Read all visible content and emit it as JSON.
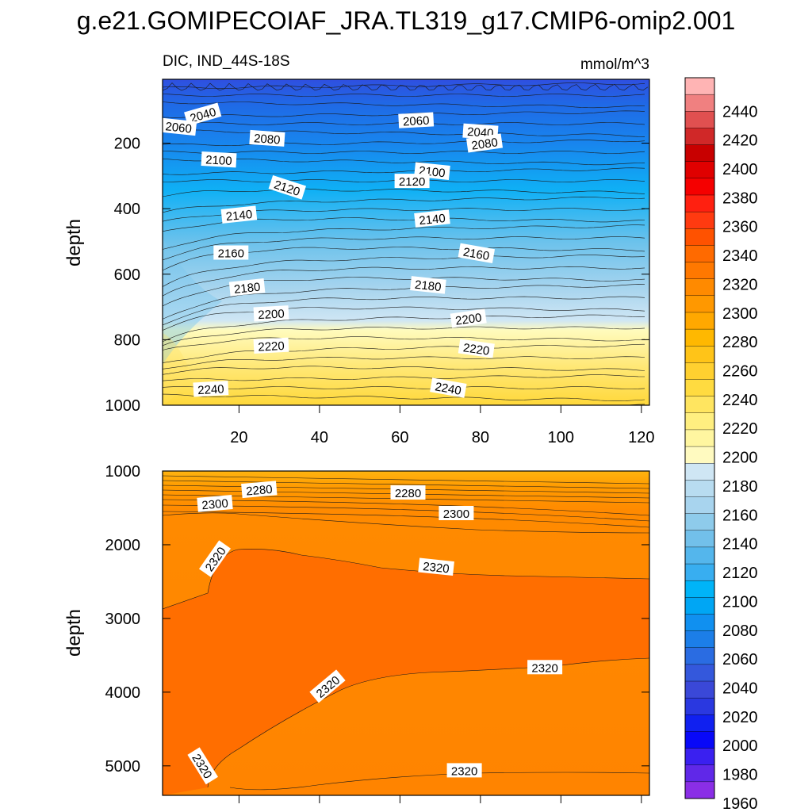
{
  "title": "g.e21.GOMIPECOIAF_JRA.TL319_g17.CMIP6-omip2.001",
  "panel_top": {
    "left_label": "DIC, IND_44S-18S",
    "right_label": "mmol/m^3"
  },
  "chart_data": [
    {
      "type": "heatmap",
      "panel": "upper",
      "title": "DIC, IND_44S-18S",
      "units": "mmol/m^3",
      "ylabel": "depth",
      "xlabel": "",
      "xlim": [
        1,
        122
      ],
      "ylim": [
        1000,
        5
      ],
      "yticks": [
        200,
        400,
        600,
        800,
        1000
      ],
      "xticks": [
        20,
        40,
        60,
        80,
        100,
        120
      ],
      "contour_labels": [
        {
          "value": 2040,
          "x": 11,
          "y": 112,
          "angle": -16
        },
        {
          "value": 2060,
          "x": 5,
          "y": 150,
          "angle": 6
        },
        {
          "value": 2060,
          "x": 64,
          "y": 130,
          "angle": -3
        },
        {
          "value": 2040,
          "x": 80,
          "y": 165,
          "angle": 4
        },
        {
          "value": 2080,
          "x": 27,
          "y": 185,
          "angle": 4
        },
        {
          "value": 2080,
          "x": 81,
          "y": 200,
          "angle": -8
        },
        {
          "value": 2100,
          "x": 15,
          "y": 250,
          "angle": 3
        },
        {
          "value": 2100,
          "x": 68,
          "y": 285,
          "angle": 6
        },
        {
          "value": 2120,
          "x": 32,
          "y": 335,
          "angle": 18
        },
        {
          "value": 2120,
          "x": 63,
          "y": 315,
          "angle": 0
        },
        {
          "value": 2140,
          "x": 20,
          "y": 418,
          "angle": -6
        },
        {
          "value": 2140,
          "x": 68,
          "y": 430,
          "angle": -6
        },
        {
          "value": 2160,
          "x": 18,
          "y": 534,
          "angle": 0
        },
        {
          "value": 2160,
          "x": 79,
          "y": 536,
          "angle": 10
        },
        {
          "value": 2180,
          "x": 22,
          "y": 640,
          "angle": -6
        },
        {
          "value": 2180,
          "x": 67,
          "y": 633,
          "angle": 6
        },
        {
          "value": 2200,
          "x": 28,
          "y": 720,
          "angle": -3
        },
        {
          "value": 2200,
          "x": 77,
          "y": 735,
          "angle": -8
        },
        {
          "value": 2220,
          "x": 28,
          "y": 818,
          "angle": -3
        },
        {
          "value": 2220,
          "x": 79,
          "y": 827,
          "angle": 8
        },
        {
          "value": 2240,
          "x": 13,
          "y": 950,
          "angle": -3
        },
        {
          "value": 2240,
          "x": 72,
          "y": 947,
          "angle": 10
        }
      ]
    },
    {
      "type": "heatmap",
      "panel": "lower",
      "ylabel": "depth",
      "xlabel": "",
      "xlim": [
        1,
        122
      ],
      "ylim": [
        5400,
        1000
      ],
      "yticks": [
        1000,
        2000,
        3000,
        4000,
        5000
      ],
      "contour_labels": [
        {
          "value": 2280,
          "x": 25,
          "y": 1250,
          "angle": -5
        },
        {
          "value": 2280,
          "x": 62,
          "y": 1290,
          "angle": 0
        },
        {
          "value": 2300,
          "x": 14,
          "y": 1440,
          "angle": -5
        },
        {
          "value": 2300,
          "x": 74,
          "y": 1570,
          "angle": 0
        },
        {
          "value": 2320,
          "x": 14,
          "y": 2190,
          "angle": -55
        },
        {
          "value": 2320,
          "x": 69,
          "y": 2300,
          "angle": 6
        },
        {
          "value": 2320,
          "x": 42,
          "y": 3920,
          "angle": -40
        },
        {
          "value": 2320,
          "x": 96,
          "y": 3660,
          "angle": 0
        },
        {
          "value": 2320,
          "x": 11,
          "y": 5000,
          "angle": 58
        },
        {
          "value": 2320,
          "x": 76,
          "y": 5060,
          "angle": 0
        }
      ]
    }
  ],
  "colorbar": {
    "labels": [
      "2440",
      "2420",
      "2400",
      "2380",
      "2360",
      "2340",
      "2320",
      "2300",
      "2280",
      "2260",
      "2240",
      "2220",
      "2200",
      "2180",
      "2160",
      "2140",
      "2120",
      "2100",
      "2080",
      "2060",
      "2040",
      "2020",
      "2000",
      "1980",
      "1960"
    ],
    "colors": [
      "#ffb4b4",
      "#f08080",
      "#e05050",
      "#d02828",
      "#c80000",
      "#e00000",
      "#f50000",
      "#ff2010",
      "#ff3a10",
      "#ff5200",
      "#ff6a00",
      "#ff7800",
      "#ff8a00",
      "#ff9800",
      "#ffa800",
      "#ffb800",
      "#ffc418",
      "#ffd030",
      "#ffdb40",
      "#ffe560",
      "#ffef80",
      "#fff6a0",
      "#fffac0",
      "#cfe6f4",
      "#b8dcf0",
      "#a8d4ee",
      "#8ecbeb",
      "#72c0ea",
      "#54b6ec",
      "#38aef0",
      "#00b4f8",
      "#00a6f4",
      "#1090f0",
      "#1c7ee8",
      "#2a6ce2",
      "#3458dc",
      "#3a48d8",
      "#2a38e0",
      "#1020f0",
      "#0808f8",
      "#3a20f0",
      "#6028e8",
      "#8a2ee6"
    ]
  },
  "axes_labels": {
    "upper_y": "depth",
    "lower_y": "depth"
  }
}
